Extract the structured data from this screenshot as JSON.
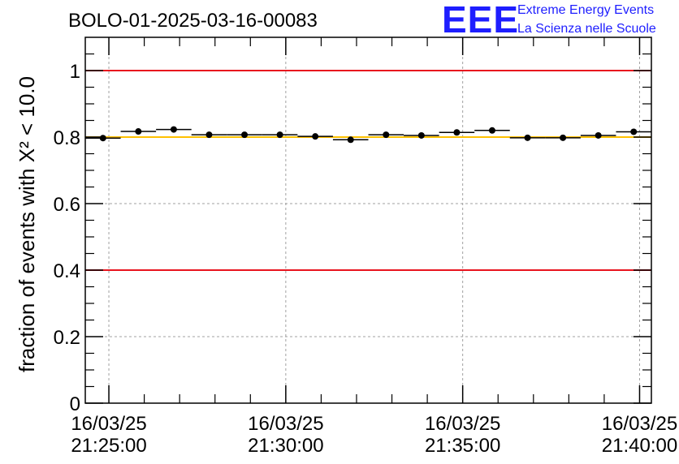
{
  "header": {
    "title": "BOLO-01-2025-03-16-00083",
    "logo_mark": "EEE",
    "logo_line1": "Extreme Energy Events",
    "logo_line2": "La Scienza nelle Scuole"
  },
  "colors": {
    "limit_line": "#e8141e",
    "reference_line": "#ffc000",
    "logo": "#1e1eff",
    "points": "#000000",
    "grid": "#a0a0a0"
  },
  "chart_data": {
    "type": "scatter",
    "title": "BOLO-01-2025-03-16-00083",
    "xlabel": "",
    "ylabel": "fraction of events with Χ² < 10.0",
    "ylim": [
      0,
      1.1
    ],
    "xlim": [
      "2025-03-16 21:24:20",
      "2025-03-16 21:40:20"
    ],
    "grid": true,
    "yticks": [
      0,
      0.2,
      0.4,
      0.6,
      0.8,
      1
    ],
    "ytick_labels": [
      "0",
      "0.2",
      "0.4",
      "0.6",
      "0.8",
      "1"
    ],
    "xticks": [
      {
        "time": "2025-03-16 21:25:00",
        "date": "16/03/25",
        "clock": "21:25:00"
      },
      {
        "time": "2025-03-16 21:30:00",
        "date": "16/03/25",
        "clock": "21:30:00"
      },
      {
        "time": "2025-03-16 21:35:00",
        "date": "16/03/25",
        "clock": "21:35:00"
      },
      {
        "time": "2025-03-16 21:40:00",
        "date": "16/03/25",
        "clock": "21:40:00"
      }
    ],
    "bin_width_seconds": 60,
    "series": [
      {
        "x": [
          "2025-03-16 21:24:50",
          "2025-03-16 21:25:50",
          "2025-03-16 21:26:50",
          "2025-03-16 21:27:50",
          "2025-03-16 21:28:50",
          "2025-03-16 21:29:50",
          "2025-03-16 21:30:50",
          "2025-03-16 21:31:50",
          "2025-03-16 21:32:50",
          "2025-03-16 21:33:50",
          "2025-03-16 21:34:50",
          "2025-03-16 21:35:50",
          "2025-03-16 21:36:50",
          "2025-03-16 21:37:50",
          "2025-03-16 21:38:50",
          "2025-03-16 21:39:50"
        ],
        "y": [
          0.797,
          0.817,
          0.823,
          0.807,
          0.807,
          0.807,
          0.802,
          0.792,
          0.807,
          0.805,
          0.814,
          0.82,
          0.798,
          0.798,
          0.805,
          0.816
        ]
      }
    ],
    "hlines": [
      {
        "y": 1.0,
        "color": "#e8141e"
      },
      {
        "y": 0.8,
        "color": "#ffc000"
      },
      {
        "y": 0.4,
        "color": "#e8141e"
      }
    ]
  }
}
